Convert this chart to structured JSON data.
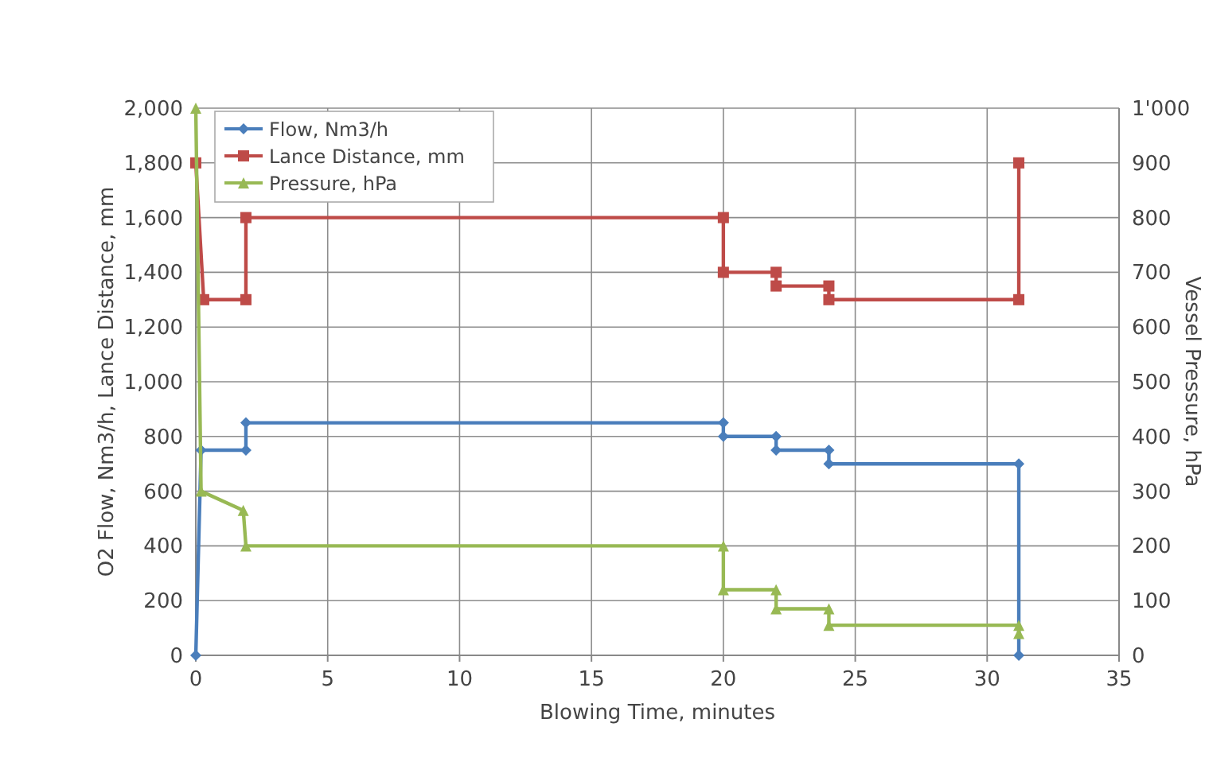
{
  "chart_data": {
    "type": "line",
    "xlabel": "Blowing Time, minutes",
    "ylabel": "O2 Flow, Nm3/h, Lance Distance, mm",
    "y2label": "Vessel Pressure, hPa",
    "xlim": [
      0,
      35
    ],
    "xticks": [
      0,
      5,
      10,
      15,
      20,
      25,
      30,
      35
    ],
    "ylim": [
      0,
      2000
    ],
    "yticks": [
      {
        "value": 0,
        "label": "0"
      },
      {
        "value": 200,
        "label": "200"
      },
      {
        "value": 400,
        "label": "400"
      },
      {
        "value": 600,
        "label": "600"
      },
      {
        "value": 800,
        "label": "800"
      },
      {
        "value": 1000,
        "label": "1,000"
      },
      {
        "value": 1200,
        "label": "1,200"
      },
      {
        "value": 1400,
        "label": "1,400"
      },
      {
        "value": 1600,
        "label": "1,600"
      },
      {
        "value": 1800,
        "label": "1,800"
      },
      {
        "value": 2000,
        "label": "2,000"
      }
    ],
    "y2lim": [
      0,
      1000
    ],
    "y2ticks": [
      0,
      100,
      200,
      300,
      400,
      500,
      600,
      700,
      800,
      900,
      {
        "value": 1000,
        "label": "1'000"
      }
    ],
    "grid": true,
    "legend": "top left",
    "series": [
      {
        "name": "Flow, Nm3/h",
        "color": "#4a7ebb",
        "marker": "diamond",
        "x": [
          0,
          0.2,
          1.9,
          1.9,
          20,
          20,
          22,
          22,
          24,
          24,
          31.2,
          31.2
        ],
        "values": [
          0,
          750,
          750,
          850,
          850,
          800,
          800,
          750,
          750,
          700,
          700,
          0
        ]
      },
      {
        "name": "Lance Distance, mm",
        "color": "#be4b48",
        "marker": "square",
        "x": [
          0,
          0.3,
          1.9,
          1.9,
          20,
          20,
          22,
          22,
          24,
          24,
          31.2,
          31.2
        ],
        "values": [
          1800,
          1300,
          1300,
          1600,
          1600,
          1400,
          1400,
          1350,
          1350,
          1300,
          1300,
          1800
        ]
      },
      {
        "name": "Pressure, hPa",
        "color": "#98b954",
        "marker": "triangle",
        "axis": "y2",
        "x": [
          0,
          0.2,
          1.8,
          1.9,
          20,
          20,
          22,
          22,
          24,
          24,
          31.2,
          31.2
        ],
        "values": [
          1000,
          300,
          265,
          200,
          200,
          120,
          120,
          85,
          85,
          55,
          55,
          40
        ]
      }
    ]
  }
}
